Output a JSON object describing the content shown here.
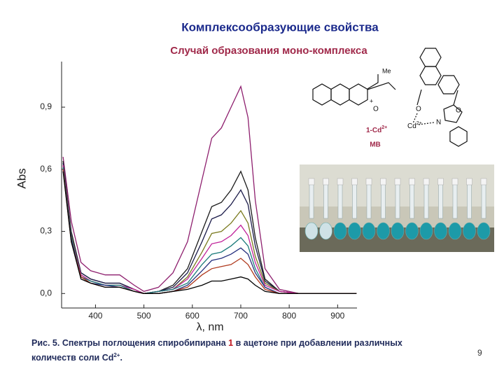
{
  "slide": {
    "title": "Комплексообразующие свойства",
    "subtitle": "Случай образования моно-комплекса",
    "caption": {
      "before": "Рис. 5. Спектры поглощения спиробипирана ",
      "compound": "1",
      "after": " в ацетоне при добавлении различных количеств соли Cd",
      "sup": "2+",
      "end": "."
    },
    "page_number": "9",
    "molecule_1": {
      "labels": [
        "Me",
        "+",
        "O"
      ]
    },
    "molecule_2": {
      "labels": [
        "O",
        "O",
        "N",
        "Cd",
        "2+"
      ],
      "name": "1-Cd",
      "name_sup": "2+",
      "solvent": "MB"
    }
  },
  "chart_data": {
    "type": "line",
    "y_label": "Abs",
    "x_label": "λ, nm",
    "x": [
      333,
      350,
      370,
      390,
      420,
      450,
      480,
      500,
      530,
      560,
      590,
      620,
      640,
      660,
      680,
      700,
      715,
      730,
      750,
      780,
      820,
      860,
      900,
      939
    ],
    "xlim": [
      330,
      940
    ],
    "xticks": [
      400,
      500,
      600,
      700,
      800,
      900
    ],
    "ylim": [
      -0.07,
      1.12
    ],
    "yticks": [
      {
        "value": 0,
        "label": "0,0"
      },
      {
        "value": 0.3,
        "label": "0,3"
      },
      {
        "value": 0.6,
        "label": "0,6"
      },
      {
        "value": 0.9,
        "label": "0,9"
      }
    ],
    "series": [
      {
        "color": "#8e1f6e",
        "values": [
          0.66,
          0.35,
          0.15,
          0.11,
          0.09,
          0.09,
          0.04,
          0.01,
          0.03,
          0.1,
          0.25,
          0.55,
          0.75,
          0.8,
          0.9,
          1.0,
          0.85,
          0.45,
          0.12,
          0.02,
          0,
          0,
          0,
          0
        ]
      },
      {
        "color": "#1a1a1a",
        "values": [
          0.64,
          0.3,
          0.1,
          0.07,
          0.05,
          0.05,
          0.02,
          0,
          0.01,
          0.04,
          0.12,
          0.3,
          0.42,
          0.44,
          0.5,
          0.59,
          0.5,
          0.27,
          0.07,
          0.01,
          0,
          0,
          0,
          0
        ]
      },
      {
        "color": "#1c1c4a",
        "values": [
          0.63,
          0.29,
          0.1,
          0.07,
          0.05,
          0.05,
          0.02,
          0,
          0.01,
          0.03,
          0.1,
          0.25,
          0.36,
          0.38,
          0.43,
          0.5,
          0.43,
          0.23,
          0.06,
          0.01,
          0,
          0,
          0,
          0
        ]
      },
      {
        "color": "#7a7a1e",
        "values": [
          0.62,
          0.28,
          0.09,
          0.06,
          0.04,
          0.04,
          0.02,
          0,
          0.01,
          0.02,
          0.08,
          0.2,
          0.29,
          0.3,
          0.34,
          0.4,
          0.34,
          0.18,
          0.05,
          0.01,
          0,
          0,
          0,
          0
        ]
      },
      {
        "color": "#c0229a",
        "values": [
          0.62,
          0.27,
          0.09,
          0.06,
          0.04,
          0.04,
          0.02,
          0,
          0.01,
          0.02,
          0.07,
          0.17,
          0.24,
          0.25,
          0.28,
          0.33,
          0.28,
          0.15,
          0.04,
          0.01,
          0,
          0,
          0,
          0
        ]
      },
      {
        "color": "#1a7a7a",
        "values": [
          0.61,
          0.27,
          0.08,
          0.06,
          0.04,
          0.04,
          0.01,
          0,
          0.01,
          0.02,
          0.05,
          0.14,
          0.19,
          0.2,
          0.23,
          0.27,
          0.23,
          0.12,
          0.03,
          0,
          0,
          0,
          0,
          0
        ]
      },
      {
        "color": "#26307e",
        "values": [
          0.6,
          0.26,
          0.08,
          0.05,
          0.04,
          0.03,
          0.01,
          0,
          0,
          0.01,
          0.04,
          0.11,
          0.16,
          0.17,
          0.19,
          0.22,
          0.19,
          0.1,
          0.03,
          0,
          0,
          0,
          0,
          0
        ]
      },
      {
        "color": "#b03a1e",
        "values": [
          0.6,
          0.25,
          0.08,
          0.05,
          0.03,
          0.03,
          0.01,
          0,
          0,
          0.01,
          0.03,
          0.09,
          0.12,
          0.13,
          0.14,
          0.17,
          0.14,
          0.08,
          0.02,
          0,
          0,
          0,
          0,
          0
        ]
      },
      {
        "color": "#000000",
        "values": [
          0.59,
          0.25,
          0.07,
          0.05,
          0.03,
          0.03,
          0.01,
          0,
          0,
          0.01,
          0.02,
          0.04,
          0.06,
          0.06,
          0.07,
          0.08,
          0.07,
          0.04,
          0.01,
          0,
          0,
          0,
          0,
          0
        ]
      }
    ]
  }
}
